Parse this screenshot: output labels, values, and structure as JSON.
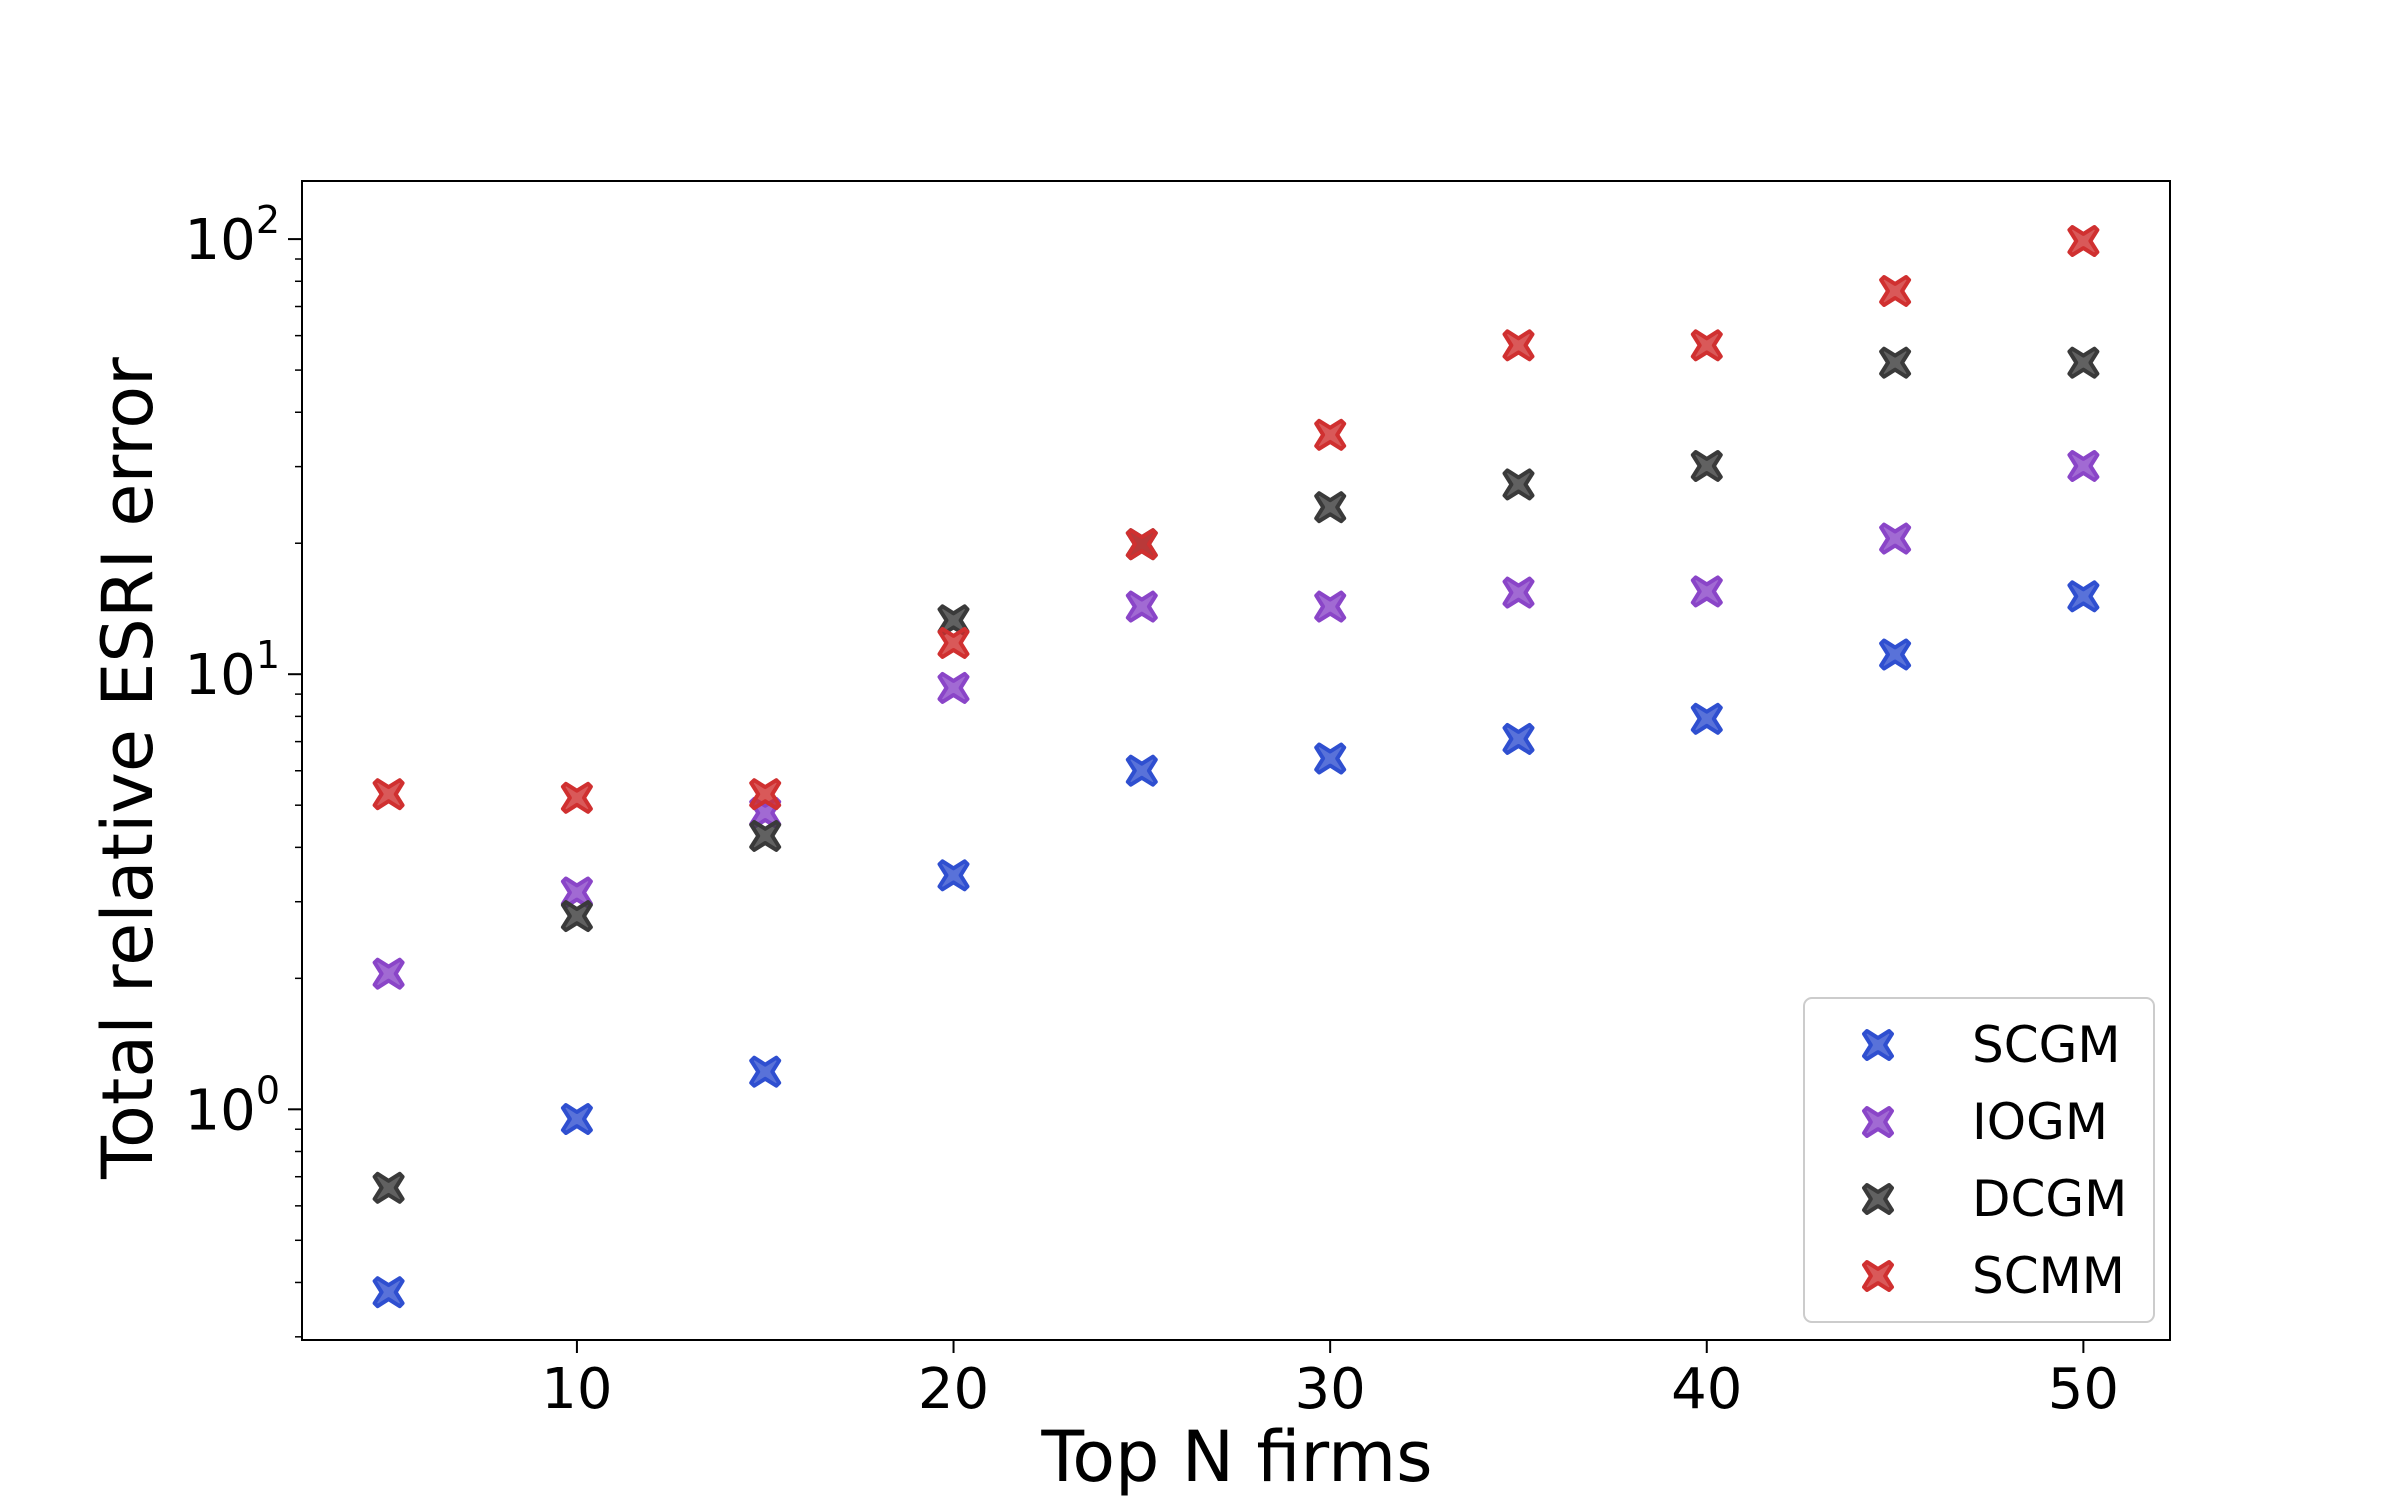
{
  "chart_data": {
    "type": "scatter",
    "xlabel": "Top N firms",
    "ylabel": "Total relative ESRI error",
    "yscale": "log",
    "xlim": [
      2.7,
      52.3
    ],
    "ylim": [
      0.295,
      136
    ],
    "xticks": [
      {
        "value": 10,
        "label": "10"
      },
      {
        "value": 20,
        "label": "20"
      },
      {
        "value": 30,
        "label": "30"
      },
      {
        "value": 40,
        "label": "40"
      },
      {
        "value": 50,
        "label": "50"
      }
    ],
    "yticks": [
      {
        "value": 1,
        "base": "10",
        "exp": "0"
      },
      {
        "value": 10,
        "base": "10",
        "exp": "1"
      },
      {
        "value": 100,
        "base": "10",
        "exp": "2"
      }
    ],
    "grid": false,
    "legend_position": "bottom-right",
    "marker": "X",
    "x": [
      5,
      10,
      15,
      20,
      25,
      30,
      35,
      40,
      45,
      50
    ],
    "series": [
      {
        "name": "SCGM",
        "color": "#2f4fd0",
        "values": [
          0.38,
          0.95,
          1.22,
          3.45,
          6.0,
          6.4,
          7.1,
          7.9,
          11.1,
          15.1
        ]
      },
      {
        "name": "IOGM",
        "color": "#8a45c8",
        "values": [
          2.05,
          3.15,
          4.8,
          9.3,
          14.3,
          14.3,
          15.4,
          15.5,
          20.5,
          30.1
        ]
      },
      {
        "name": "DCGM",
        "color": "#3a3a3a",
        "values": [
          0.66,
          2.78,
          4.25,
          13.3,
          19.9,
          24.2,
          27.3,
          30.1,
          52.0,
          52.0
        ]
      },
      {
        "name": "SCMM",
        "color": "#d03030",
        "values": [
          5.3,
          5.2,
          5.3,
          11.8,
          19.9,
          35.5,
          57.0,
          57.0,
          76.0,
          99.0
        ]
      }
    ]
  }
}
